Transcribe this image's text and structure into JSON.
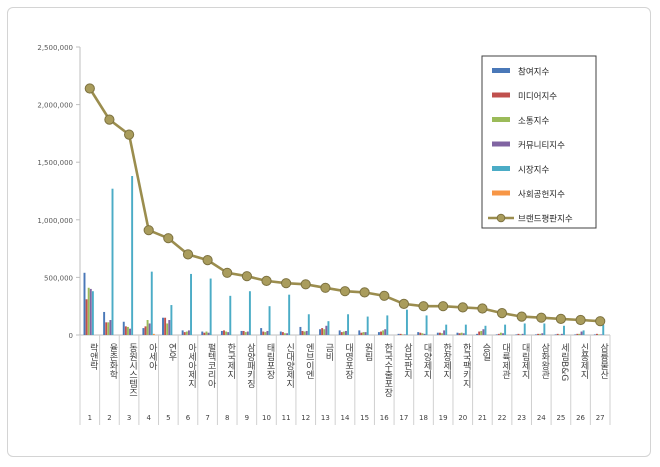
{
  "chart_data": {
    "type": "bar",
    "title": "",
    "xlabel": "",
    "ylabel": "",
    "ylim": [
      0,
      2500000
    ],
    "y_ticks": [
      0,
      500000,
      1000000,
      1500000,
      2000000,
      2500000
    ],
    "y_tick_labels": [
      "0",
      "500,000",
      "1,000,000",
      "1,500,000",
      "2,000,000",
      "2,500,000"
    ],
    "grid": false,
    "legend_position": "top-right",
    "categories": [
      "락앤락",
      "율촌화학",
      "동원시스템즈",
      "아세아",
      "연우",
      "아세아제지",
      "펄텍코리아",
      "한국제지",
      "삼양패키징",
      "태림포장",
      "신대양제지",
      "엔브이엔",
      "금비",
      "대영포장",
      "원림",
      "한국수출포장",
      "삼보판지",
      "대양제지",
      "한창제지",
      "한국팩키지",
      "승일",
      "대륙제관",
      "대림제지",
      "삼화왕관",
      "세림B&G",
      "신풍제지",
      "삼륭물산"
    ],
    "ranks": [
      "1",
      "2",
      "3",
      "4",
      "5",
      "6",
      "7",
      "8",
      "9",
      "10",
      "11",
      "12",
      "13",
      "14",
      "15",
      "16",
      "17",
      "18",
      "19",
      "20",
      "21",
      "22",
      "23",
      "24",
      "25",
      "26",
      "27"
    ],
    "series": [
      {
        "name": "참여지수",
        "color": "#4a78b8",
        "kind": "bar",
        "values": [
          540000,
          200000,
          115000,
          60000,
          150000,
          40000,
          30000,
          35000,
          35000,
          60000,
          30000,
          70000,
          50000,
          40000,
          40000,
          25000,
          10000,
          25000,
          20000,
          20000,
          10000,
          5000,
          5000,
          5000,
          5000,
          5000,
          5000
        ]
      },
      {
        "name": "미디어지수",
        "color": "#c0504d",
        "kind": "bar",
        "values": [
          310000,
          110000,
          75000,
          75000,
          150000,
          25000,
          20000,
          40000,
          35000,
          30000,
          25000,
          35000,
          60000,
          25000,
          20000,
          30000,
          10000,
          20000,
          20000,
          15000,
          30000,
          10000,
          10000,
          10000,
          10000,
          10000,
          10000
        ]
      },
      {
        "name": "소통지수",
        "color": "#9bbb59",
        "kind": "bar",
        "values": [
          410000,
          110000,
          70000,
          130000,
          100000,
          30000,
          30000,
          30000,
          25000,
          25000,
          15000,
          30000,
          50000,
          30000,
          25000,
          40000,
          5000,
          15000,
          15000,
          20000,
          35000,
          20000,
          5000,
          10000,
          5000,
          10000,
          5000
        ]
      },
      {
        "name": "커뮤니티지수",
        "color": "#8064a2",
        "kind": "bar",
        "values": [
          400000,
          130000,
          55000,
          100000,
          130000,
          40000,
          20000,
          25000,
          30000,
          35000,
          15000,
          35000,
          80000,
          35000,
          25000,
          50000,
          5000,
          10000,
          40000,
          15000,
          50000,
          15000,
          10000,
          15000,
          10000,
          30000,
          5000
        ]
      },
      {
        "name": "시장지수",
        "color": "#4bacc6",
        "kind": "bar",
        "values": [
          380000,
          1270000,
          1380000,
          550000,
          260000,
          530000,
          490000,
          340000,
          380000,
          250000,
          350000,
          180000,
          120000,
          180000,
          160000,
          170000,
          220000,
          170000,
          90000,
          90000,
          80000,
          90000,
          100000,
          100000,
          80000,
          40000,
          90000
        ]
      },
      {
        "name": "사회공헌지수",
        "color": "#f79646",
        "kind": "bar",
        "values": [
          0,
          0,
          0,
          10000,
          0,
          0,
          0,
          0,
          0,
          0,
          0,
          0,
          0,
          0,
          0,
          0,
          0,
          0,
          0,
          0,
          0,
          0,
          0,
          0,
          0,
          0,
          0
        ]
      },
      {
        "name": "브랜드평판지수",
        "color": "#9b8d4e",
        "kind": "line",
        "values": [
          2140000,
          1870000,
          1740000,
          910000,
          840000,
          700000,
          650000,
          540000,
          510000,
          470000,
          450000,
          440000,
          410000,
          380000,
          370000,
          340000,
          270000,
          250000,
          250000,
          240000,
          230000,
          190000,
          160000,
          150000,
          140000,
          130000,
          120000
        ]
      }
    ]
  }
}
